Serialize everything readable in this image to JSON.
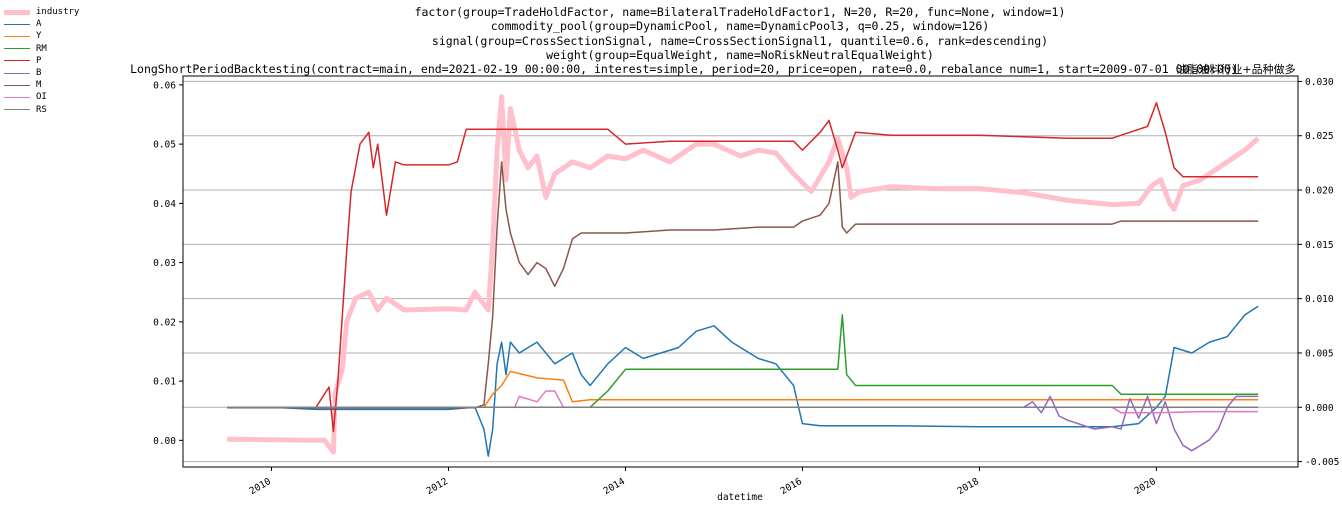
{
  "chart_data": {
    "type": "line",
    "title_lines": [
      "factor(group=TradeHoldFactor, name=BilateralTradeHoldFactor1, N=20, R=20, func=None, window=1)",
      "commodity_pool(group=DynamicPool, name=DynamicPool3, q=0.25, window=126)",
      "signal(group=CrossSectionSignal, name=CrossSectionSignal1, quantile=0.6, rank=descending)",
      "weight(group=EqualWeight, name=NoRiskNeutralEqualWeight)",
      "LongShortPeriodBacktesting(contract=main, end=2021-02-19 00:00:00, interest=simple, period=20, price=open, rate=0.0, rebalance_num=1, start=2009-07-01 00:00:00)"
    ],
    "annotation": "油脂油料行业+品种做多",
    "xlabel": "datetime",
    "x_ticks": [
      "2010",
      "2012",
      "2014",
      "2016",
      "2018",
      "2020"
    ],
    "y_left_ticks": [
      "0.00",
      "0.01",
      "0.02",
      "0.03",
      "0.04",
      "0.05",
      "0.06"
    ],
    "y_right_ticks": [
      "-0.005",
      "0.000",
      "0.005",
      "0.010",
      "0.015",
      "0.020",
      "0.025",
      "0.030"
    ],
    "x_range": [
      2009.0,
      2021.6
    ],
    "ylim_left": [
      -0.0045,
      0.0615
    ],
    "ylim_right": [
      -0.0055,
      0.0305
    ],
    "grid": "horizontal, right axis",
    "legend_position": "outside-top-left",
    "series": [
      {
        "name": "industry",
        "axis": "left",
        "color": "#ffc0cb",
        "width": 5,
        "points": [
          [
            2009.5,
            0.0002
          ],
          [
            2010.0,
            0.0001
          ],
          [
            2010.4,
            0.0
          ],
          [
            2010.6,
            0.0
          ],
          [
            2010.7,
            -0.002
          ],
          [
            2010.72,
            0.008
          ],
          [
            2010.8,
            0.012
          ],
          [
            2010.85,
            0.02
          ],
          [
            2010.95,
            0.024
          ],
          [
            2011.1,
            0.025
          ],
          [
            2011.2,
            0.022
          ],
          [
            2011.3,
            0.024
          ],
          [
            2011.5,
            0.022
          ],
          [
            2012.0,
            0.0222
          ],
          [
            2012.2,
            0.022
          ],
          [
            2012.3,
            0.025
          ],
          [
            2012.45,
            0.022
          ],
          [
            2012.5,
            0.033
          ],
          [
            2012.55,
            0.049
          ],
          [
            2012.6,
            0.058
          ],
          [
            2012.65,
            0.044
          ],
          [
            2012.7,
            0.056
          ],
          [
            2012.8,
            0.049
          ],
          [
            2012.9,
            0.046
          ],
          [
            2013.0,
            0.048
          ],
          [
            2013.1,
            0.041
          ],
          [
            2013.2,
            0.045
          ],
          [
            2013.4,
            0.047
          ],
          [
            2013.6,
            0.046
          ],
          [
            2013.8,
            0.048
          ],
          [
            2014.0,
            0.0475
          ],
          [
            2014.2,
            0.049
          ],
          [
            2014.5,
            0.047
          ],
          [
            2014.8,
            0.05
          ],
          [
            2015.0,
            0.05
          ],
          [
            2015.3,
            0.048
          ],
          [
            2015.5,
            0.049
          ],
          [
            2015.7,
            0.0485
          ],
          [
            2015.9,
            0.045
          ],
          [
            2016.1,
            0.042
          ],
          [
            2016.3,
            0.047
          ],
          [
            2016.4,
            0.051
          ],
          [
            2016.5,
            0.046
          ],
          [
            2016.55,
            0.041
          ],
          [
            2016.65,
            0.042
          ],
          [
            2017.0,
            0.0428
          ],
          [
            2017.5,
            0.0425
          ],
          [
            2018.0,
            0.0425
          ],
          [
            2018.5,
            0.0418
          ],
          [
            2019.0,
            0.0405
          ],
          [
            2019.5,
            0.0398
          ],
          [
            2019.8,
            0.04
          ],
          [
            2019.95,
            0.043
          ],
          [
            2020.05,
            0.044
          ],
          [
            2020.15,
            0.04
          ],
          [
            2020.2,
            0.039
          ],
          [
            2020.3,
            0.043
          ],
          [
            2020.5,
            0.044
          ],
          [
            2020.7,
            0.046
          ],
          [
            2020.9,
            0.048
          ],
          [
            2021.0,
            0.049
          ],
          [
            2021.15,
            0.051
          ]
        ]
      },
      {
        "name": "A",
        "axis": "right",
        "color": "#1f77b4",
        "width": 1.5,
        "points": [
          [
            2009.5,
            0.0
          ],
          [
            2010.0,
            0.0
          ],
          [
            2010.5,
            -0.0002
          ],
          [
            2011.0,
            -0.0002
          ],
          [
            2011.5,
            -0.0002
          ],
          [
            2012.0,
            -0.0002
          ],
          [
            2012.3,
            0.0
          ],
          [
            2012.4,
            -0.002
          ],
          [
            2012.45,
            -0.0045
          ],
          [
            2012.5,
            -0.002
          ],
          [
            2012.55,
            0.004
          ],
          [
            2012.6,
            0.006
          ],
          [
            2012.65,
            0.003
          ],
          [
            2012.7,
            0.006
          ],
          [
            2012.8,
            0.005
          ],
          [
            2013.0,
            0.006
          ],
          [
            2013.2,
            0.004
          ],
          [
            2013.4,
            0.005
          ],
          [
            2013.5,
            0.003
          ],
          [
            2013.6,
            0.002
          ],
          [
            2013.8,
            0.004
          ],
          [
            2014.0,
            0.0055
          ],
          [
            2014.2,
            0.0045
          ],
          [
            2014.4,
            0.005
          ],
          [
            2014.6,
            0.0055
          ],
          [
            2014.8,
            0.007
          ],
          [
            2015.0,
            0.0075
          ],
          [
            2015.2,
            0.006
          ],
          [
            2015.5,
            0.0045
          ],
          [
            2015.7,
            0.004
          ],
          [
            2015.9,
            0.002
          ],
          [
            2016.0,
            -0.0015
          ],
          [
            2016.2,
            -0.0017
          ],
          [
            2017.0,
            -0.0017
          ],
          [
            2018.0,
            -0.0018
          ],
          [
            2019.0,
            -0.0018
          ],
          [
            2019.5,
            -0.0018
          ],
          [
            2019.8,
            -0.0015
          ],
          [
            2020.0,
            0.0
          ],
          [
            2020.1,
            0.001
          ],
          [
            2020.2,
            0.0055
          ],
          [
            2020.4,
            0.005
          ],
          [
            2020.6,
            0.006
          ],
          [
            2020.8,
            0.0065
          ],
          [
            2021.0,
            0.0085
          ],
          [
            2021.15,
            0.0093
          ]
        ]
      },
      {
        "name": "Y",
        "axis": "right",
        "color": "#ff7f0e",
        "width": 1.5,
        "points": [
          [
            2009.5,
            0.0
          ],
          [
            2012.4,
            0.0
          ],
          [
            2012.5,
            0.0012
          ],
          [
            2012.6,
            0.002
          ],
          [
            2012.7,
            0.0033
          ],
          [
            2013.0,
            0.0027
          ],
          [
            2013.3,
            0.0025
          ],
          [
            2013.4,
            0.0005
          ],
          [
            2013.6,
            0.0007
          ],
          [
            2014.0,
            0.0007
          ],
          [
            2016.0,
            0.0007
          ],
          [
            2018.0,
            0.0007
          ],
          [
            2020.0,
            0.0007
          ],
          [
            2021.15,
            0.0007
          ]
        ]
      },
      {
        "name": "RM",
        "axis": "right",
        "color": "#2ca02c",
        "width": 1.5,
        "points": [
          [
            2009.5,
            0.0
          ],
          [
            2013.6,
            0.0
          ],
          [
            2013.8,
            0.0015
          ],
          [
            2014.0,
            0.0035
          ],
          [
            2015.0,
            0.0035
          ],
          [
            2015.5,
            0.0035
          ],
          [
            2016.0,
            0.0035
          ],
          [
            2016.2,
            0.0035
          ],
          [
            2016.4,
            0.0035
          ],
          [
            2016.45,
            0.0085
          ],
          [
            2016.5,
            0.003
          ],
          [
            2016.6,
            0.002
          ],
          [
            2017.0,
            0.002
          ],
          [
            2018.0,
            0.002
          ],
          [
            2019.0,
            0.002
          ],
          [
            2019.5,
            0.002
          ],
          [
            2019.6,
            0.0012
          ],
          [
            2020.0,
            0.0012
          ],
          [
            2021.15,
            0.0012
          ]
        ]
      },
      {
        "name": "P",
        "axis": "left",
        "color": "#d62728",
        "width": 1.5,
        "points": [
          [
            2009.5,
            0.0055
          ],
          [
            2010.0,
            0.0055
          ],
          [
            2010.5,
            0.0055
          ],
          [
            2010.65,
            0.009
          ],
          [
            2010.7,
            0.0015
          ],
          [
            2010.75,
            0.01
          ],
          [
            2010.8,
            0.021
          ],
          [
            2010.85,
            0.032
          ],
          [
            2010.9,
            0.042
          ],
          [
            2011.0,
            0.05
          ],
          [
            2011.1,
            0.052
          ],
          [
            2011.15,
            0.046
          ],
          [
            2011.2,
            0.05
          ],
          [
            2011.3,
            0.038
          ],
          [
            2011.4,
            0.047
          ],
          [
            2011.5,
            0.0465
          ],
          [
            2012.0,
            0.0465
          ],
          [
            2012.1,
            0.047
          ],
          [
            2012.2,
            0.0525
          ],
          [
            2012.5,
            0.0525
          ],
          [
            2013.0,
            0.0525
          ],
          [
            2013.8,
            0.0525
          ],
          [
            2014.0,
            0.05
          ],
          [
            2014.5,
            0.0505
          ],
          [
            2015.0,
            0.0505
          ],
          [
            2015.5,
            0.0505
          ],
          [
            2015.9,
            0.0505
          ],
          [
            2016.0,
            0.049
          ],
          [
            2016.2,
            0.052
          ],
          [
            2016.3,
            0.054
          ],
          [
            2016.4,
            0.049
          ],
          [
            2016.45,
            0.046
          ],
          [
            2016.55,
            0.05
          ],
          [
            2016.6,
            0.052
          ],
          [
            2017.0,
            0.0515
          ],
          [
            2018.0,
            0.0515
          ],
          [
            2019.0,
            0.051
          ],
          [
            2019.5,
            0.051
          ],
          [
            2019.9,
            0.053
          ],
          [
            2020.0,
            0.057
          ],
          [
            2020.1,
            0.052
          ],
          [
            2020.2,
            0.046
          ],
          [
            2020.3,
            0.0445
          ],
          [
            2020.7,
            0.0445
          ],
          [
            2020.9,
            0.0445
          ],
          [
            2021.15,
            0.0445
          ]
        ]
      },
      {
        "name": "B",
        "axis": "right",
        "color": "#9467bd",
        "width": 1.5,
        "points": [
          [
            2009.5,
            0.0
          ],
          [
            2018.0,
            0.0
          ],
          [
            2018.5,
            0.0
          ],
          [
            2018.6,
            0.0005
          ],
          [
            2018.7,
            -0.0005
          ],
          [
            2018.8,
            0.001
          ],
          [
            2018.9,
            -0.0008
          ],
          [
            2019.0,
            -0.0012
          ],
          [
            2019.3,
            -0.002
          ],
          [
            2019.5,
            -0.0018
          ],
          [
            2019.6,
            -0.002
          ],
          [
            2019.7,
            0.0008
          ],
          [
            2019.8,
            -0.001
          ],
          [
            2019.9,
            0.001
          ],
          [
            2020.0,
            -0.0015
          ],
          [
            2020.1,
            0.0005
          ],
          [
            2020.2,
            -0.002
          ],
          [
            2020.3,
            -0.0035
          ],
          [
            2020.4,
            -0.004
          ],
          [
            2020.5,
            -0.0035
          ],
          [
            2020.6,
            -0.003
          ],
          [
            2020.7,
            -0.002
          ],
          [
            2020.8,
            0.0
          ],
          [
            2020.9,
            0.001
          ],
          [
            2021.15,
            0.001
          ]
        ]
      },
      {
        "name": "M",
        "axis": "left",
        "color": "#8c564b",
        "width": 1.5,
        "points": [
          [
            2009.5,
            0.0055
          ],
          [
            2012.0,
            0.0055
          ],
          [
            2012.3,
            0.0055
          ],
          [
            2012.4,
            0.006
          ],
          [
            2012.45,
            0.013
          ],
          [
            2012.5,
            0.021
          ],
          [
            2012.55,
            0.036
          ],
          [
            2012.6,
            0.047
          ],
          [
            2012.65,
            0.039
          ],
          [
            2012.7,
            0.035
          ],
          [
            2012.8,
            0.03
          ],
          [
            2012.9,
            0.028
          ],
          [
            2013.0,
            0.03
          ],
          [
            2013.1,
            0.029
          ],
          [
            2013.2,
            0.026
          ],
          [
            2013.3,
            0.029
          ],
          [
            2013.4,
            0.034
          ],
          [
            2013.5,
            0.035
          ],
          [
            2014.0,
            0.035
          ],
          [
            2014.5,
            0.0355
          ],
          [
            2015.0,
            0.0355
          ],
          [
            2015.5,
            0.036
          ],
          [
            2015.9,
            0.036
          ],
          [
            2016.0,
            0.037
          ],
          [
            2016.2,
            0.038
          ],
          [
            2016.3,
            0.04
          ],
          [
            2016.4,
            0.047
          ],
          [
            2016.45,
            0.036
          ],
          [
            2016.5,
            0.035
          ],
          [
            2016.6,
            0.0365
          ],
          [
            2017.0,
            0.0365
          ],
          [
            2018.0,
            0.0365
          ],
          [
            2019.0,
            0.0365
          ],
          [
            2019.5,
            0.0365
          ],
          [
            2019.6,
            0.037
          ],
          [
            2020.0,
            0.037
          ],
          [
            2021.15,
            0.037
          ]
        ]
      },
      {
        "name": "OI",
        "axis": "right",
        "color": "#e377c2",
        "width": 1.5,
        "points": [
          [
            2009.5,
            0.0
          ],
          [
            2012.7,
            0.0
          ],
          [
            2012.75,
            0.0
          ],
          [
            2012.8,
            0.001
          ],
          [
            2013.0,
            0.0005
          ],
          [
            2013.1,
            0.0015
          ],
          [
            2013.2,
            0.0015
          ],
          [
            2013.3,
            0.0
          ],
          [
            2014.0,
            0.0
          ],
          [
            2015.0,
            0.0
          ],
          [
            2016.0,
            0.0
          ],
          [
            2017.0,
            0.0
          ],
          [
            2018.0,
            0.0
          ],
          [
            2019.0,
            0.0
          ],
          [
            2019.5,
            0.0
          ],
          [
            2019.6,
            -0.0005
          ],
          [
            2020.0,
            -0.0005
          ],
          [
            2020.5,
            -0.0004
          ],
          [
            2021.15,
            -0.0004
          ]
        ]
      },
      {
        "name": "RS",
        "axis": "right",
        "color": "#7f7f7f",
        "width": 1.5,
        "points": [
          [
            2009.5,
            0.0
          ],
          [
            2021.15,
            0.0
          ]
        ]
      }
    ]
  }
}
